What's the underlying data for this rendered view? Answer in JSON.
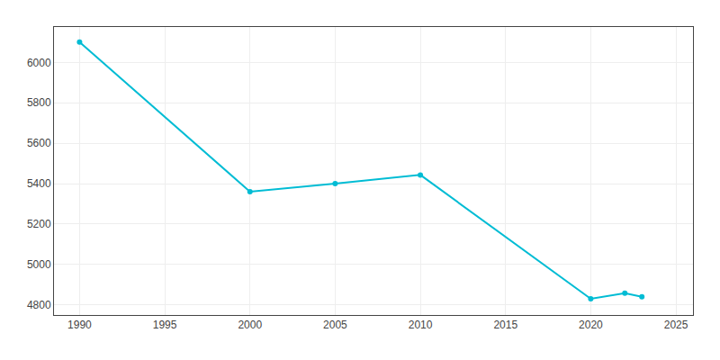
{
  "chart_data": {
    "type": "line",
    "x": [
      1990,
      2000,
      2005,
      2010,
      2020,
      2022,
      2023
    ],
    "values": [
      6100,
      5360,
      5400,
      5443,
      4830,
      4858,
      4840
    ],
    "color": "#00BCD4",
    "marker": "circle",
    "line_style": "solid",
    "xlim": [
      1988.5,
      2026
    ],
    "ylim": [
      4750,
      6175
    ],
    "xticks": [
      1990,
      1995,
      2000,
      2005,
      2010,
      2015,
      2020,
      2025
    ],
    "yticks": [
      4800,
      5000,
      5200,
      5400,
      5600,
      5800,
      6000
    ],
    "grid": true
  }
}
